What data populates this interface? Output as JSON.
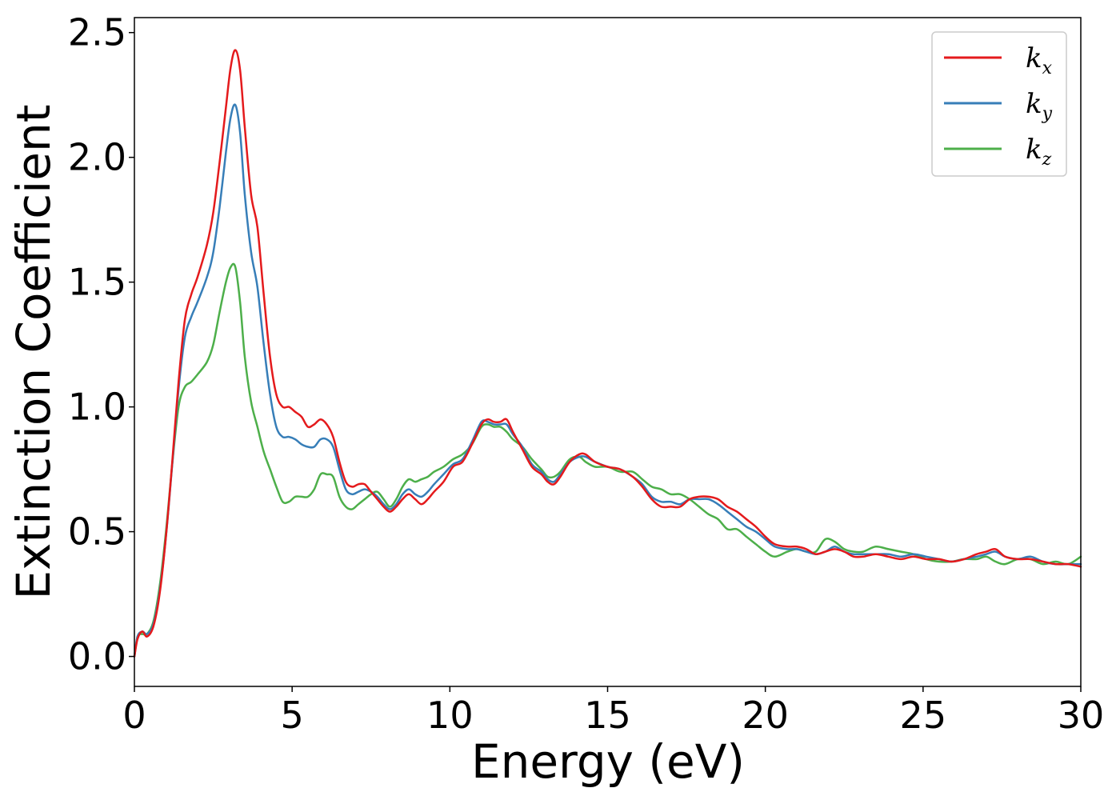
{
  "chart_data": {
    "type": "line",
    "title": "",
    "xlabel": "Energy (eV)",
    "ylabel": "Extinction Coefficient",
    "xlim": [
      0,
      30
    ],
    "ylim": [
      -0.12,
      2.56
    ],
    "xticks": [
      0,
      5,
      10,
      15,
      20,
      25,
      30
    ],
    "xtick_labels": [
      "0",
      "5",
      "10",
      "15",
      "20",
      "25",
      "30"
    ],
    "yticks": [
      0.0,
      0.5,
      1.0,
      1.5,
      2.0,
      2.5
    ],
    "ytick_labels": [
      "0.0",
      "0.5",
      "1.0",
      "1.5",
      "2.0",
      "2.5"
    ],
    "grid": false,
    "legend_position": "top-right",
    "series": [
      {
        "name": "k_x",
        "label_base": "k",
        "label_sub": "x",
        "color": "#e41a1c",
        "x": [
          0,
          0.1,
          0.25,
          0.4,
          0.6,
          0.8,
          1.0,
          1.2,
          1.4,
          1.6,
          1.8,
          2.0,
          2.3,
          2.5,
          2.7,
          2.9,
          3.05,
          3.2,
          3.35,
          3.5,
          3.7,
          3.9,
          4.1,
          4.3,
          4.5,
          4.7,
          4.9,
          5.1,
          5.3,
          5.5,
          5.7,
          5.9,
          6.1,
          6.3,
          6.5,
          6.7,
          6.9,
          7.1,
          7.3,
          7.5,
          7.7,
          7.9,
          8.1,
          8.3,
          8.5,
          8.7,
          8.9,
          9.1,
          9.3,
          9.5,
          9.8,
          10.1,
          10.4,
          10.7,
          11.0,
          11.2,
          11.4,
          11.6,
          11.8,
          12.0,
          12.3,
          12.6,
          12.9,
          13.1,
          13.3,
          13.5,
          13.8,
          14.1,
          14.3,
          14.6,
          15.0,
          15.4,
          15.8,
          16.1,
          16.4,
          16.7,
          17.0,
          17.3,
          17.6,
          17.9,
          18.2,
          18.5,
          18.8,
          19.1,
          19.4,
          19.7,
          20.0,
          20.3,
          20.7,
          21.0,
          21.3,
          21.6,
          21.9,
          22.2,
          22.5,
          22.8,
          23.1,
          23.5,
          23.9,
          24.3,
          24.7,
          25.1,
          25.5,
          25.9,
          26.3,
          26.7,
          27.0,
          27.3,
          27.6,
          28.0,
          28.4,
          28.8,
          29.2,
          29.6,
          30.0
        ],
        "y": [
          0.0,
          0.07,
          0.1,
          0.08,
          0.12,
          0.25,
          0.48,
          0.78,
          1.1,
          1.35,
          1.45,
          1.52,
          1.65,
          1.78,
          1.98,
          2.2,
          2.36,
          2.43,
          2.35,
          2.12,
          1.85,
          1.72,
          1.45,
          1.2,
          1.05,
          1.0,
          1.0,
          0.98,
          0.96,
          0.92,
          0.93,
          0.95,
          0.93,
          0.88,
          0.78,
          0.7,
          0.68,
          0.69,
          0.69,
          0.66,
          0.63,
          0.6,
          0.58,
          0.6,
          0.63,
          0.65,
          0.63,
          0.61,
          0.63,
          0.66,
          0.7,
          0.76,
          0.78,
          0.85,
          0.93,
          0.95,
          0.94,
          0.94,
          0.95,
          0.9,
          0.83,
          0.76,
          0.73,
          0.7,
          0.69,
          0.72,
          0.78,
          0.81,
          0.81,
          0.78,
          0.76,
          0.75,
          0.72,
          0.68,
          0.63,
          0.6,
          0.6,
          0.6,
          0.63,
          0.64,
          0.64,
          0.63,
          0.6,
          0.58,
          0.55,
          0.52,
          0.48,
          0.45,
          0.44,
          0.44,
          0.43,
          0.41,
          0.42,
          0.43,
          0.42,
          0.4,
          0.4,
          0.41,
          0.4,
          0.39,
          0.4,
          0.39,
          0.39,
          0.38,
          0.39,
          0.41,
          0.42,
          0.43,
          0.4,
          0.39,
          0.39,
          0.38,
          0.37,
          0.37,
          0.36
        ]
      },
      {
        "name": "k_y",
        "label_base": "k",
        "label_sub": "y",
        "color": "#377eb8",
        "x": [
          0,
          0.1,
          0.25,
          0.4,
          0.6,
          0.8,
          1.0,
          1.2,
          1.4,
          1.6,
          1.8,
          2.0,
          2.3,
          2.5,
          2.7,
          2.9,
          3.05,
          3.2,
          3.35,
          3.5,
          3.7,
          3.9,
          4.1,
          4.3,
          4.5,
          4.7,
          4.9,
          5.1,
          5.3,
          5.5,
          5.7,
          5.9,
          6.1,
          6.3,
          6.5,
          6.7,
          6.9,
          7.1,
          7.3,
          7.5,
          7.7,
          7.9,
          8.1,
          8.3,
          8.5,
          8.7,
          8.9,
          9.1,
          9.3,
          9.5,
          9.8,
          10.1,
          10.4,
          10.7,
          11.0,
          11.2,
          11.4,
          11.6,
          11.8,
          12.0,
          12.3,
          12.6,
          12.9,
          13.1,
          13.3,
          13.5,
          13.8,
          14.1,
          14.3,
          14.6,
          15.0,
          15.4,
          15.8,
          16.1,
          16.4,
          16.7,
          17.0,
          17.3,
          17.6,
          17.9,
          18.2,
          18.5,
          18.8,
          19.1,
          19.4,
          19.7,
          20.0,
          20.3,
          20.7,
          21.0,
          21.3,
          21.6,
          21.9,
          22.2,
          22.5,
          22.8,
          23.1,
          23.5,
          23.9,
          24.3,
          24.7,
          25.1,
          25.5,
          25.9,
          26.3,
          26.7,
          27.0,
          27.3,
          27.6,
          28.0,
          28.4,
          28.8,
          29.2,
          29.6,
          30.0
        ],
        "y": [
          0.0,
          0.08,
          0.1,
          0.09,
          0.13,
          0.26,
          0.48,
          0.77,
          1.07,
          1.28,
          1.36,
          1.42,
          1.52,
          1.62,
          1.8,
          2.02,
          2.16,
          2.21,
          2.1,
          1.85,
          1.62,
          1.48,
          1.25,
          1.05,
          0.92,
          0.88,
          0.88,
          0.87,
          0.85,
          0.84,
          0.84,
          0.87,
          0.87,
          0.84,
          0.75,
          0.67,
          0.65,
          0.66,
          0.67,
          0.66,
          0.64,
          0.61,
          0.59,
          0.61,
          0.65,
          0.67,
          0.65,
          0.64,
          0.66,
          0.69,
          0.73,
          0.77,
          0.79,
          0.86,
          0.94,
          0.94,
          0.93,
          0.93,
          0.93,
          0.89,
          0.84,
          0.77,
          0.74,
          0.71,
          0.7,
          0.73,
          0.78,
          0.8,
          0.8,
          0.78,
          0.76,
          0.75,
          0.72,
          0.69,
          0.64,
          0.62,
          0.62,
          0.61,
          0.63,
          0.63,
          0.63,
          0.61,
          0.58,
          0.55,
          0.52,
          0.5,
          0.47,
          0.44,
          0.43,
          0.43,
          0.42,
          0.41,
          0.42,
          0.44,
          0.42,
          0.41,
          0.41,
          0.41,
          0.41,
          0.4,
          0.41,
          0.4,
          0.39,
          0.38,
          0.39,
          0.4,
          0.41,
          0.42,
          0.4,
          0.39,
          0.4,
          0.38,
          0.37,
          0.37,
          0.37
        ]
      },
      {
        "name": "k_z",
        "label_base": "k",
        "label_sub": "z",
        "color": "#4daf4a",
        "x": [
          0,
          0.1,
          0.25,
          0.4,
          0.6,
          0.8,
          1.0,
          1.2,
          1.4,
          1.6,
          1.8,
          2.0,
          2.3,
          2.5,
          2.7,
          2.9,
          3.05,
          3.2,
          3.35,
          3.5,
          3.7,
          3.9,
          4.1,
          4.3,
          4.5,
          4.7,
          4.9,
          5.1,
          5.3,
          5.5,
          5.7,
          5.9,
          6.1,
          6.3,
          6.5,
          6.7,
          6.9,
          7.1,
          7.3,
          7.5,
          7.7,
          7.9,
          8.1,
          8.3,
          8.5,
          8.7,
          8.9,
          9.1,
          9.3,
          9.5,
          9.8,
          10.1,
          10.4,
          10.7,
          11.0,
          11.2,
          11.4,
          11.6,
          11.8,
          12.0,
          12.3,
          12.6,
          12.9,
          13.1,
          13.3,
          13.5,
          13.8,
          14.1,
          14.3,
          14.6,
          15.0,
          15.4,
          15.8,
          16.1,
          16.4,
          16.7,
          17.0,
          17.3,
          17.6,
          17.9,
          18.2,
          18.5,
          18.8,
          19.1,
          19.4,
          19.7,
          20.0,
          20.3,
          20.7,
          21.0,
          21.3,
          21.6,
          21.9,
          22.2,
          22.5,
          22.8,
          23.1,
          23.5,
          23.9,
          24.3,
          24.7,
          25.1,
          25.5,
          25.9,
          26.3,
          26.7,
          27.0,
          27.3,
          27.6,
          28.0,
          28.4,
          28.8,
          29.2,
          29.6,
          30.0
        ],
        "y": [
          0.0,
          0.08,
          0.09,
          0.09,
          0.14,
          0.28,
          0.5,
          0.77,
          1.0,
          1.08,
          1.1,
          1.13,
          1.18,
          1.25,
          1.38,
          1.5,
          1.56,
          1.56,
          1.42,
          1.2,
          1.02,
          0.92,
          0.82,
          0.75,
          0.68,
          0.62,
          0.62,
          0.64,
          0.64,
          0.64,
          0.67,
          0.73,
          0.73,
          0.72,
          0.64,
          0.6,
          0.59,
          0.61,
          0.63,
          0.65,
          0.66,
          0.63,
          0.6,
          0.63,
          0.68,
          0.71,
          0.7,
          0.71,
          0.72,
          0.74,
          0.76,
          0.79,
          0.81,
          0.85,
          0.92,
          0.93,
          0.92,
          0.92,
          0.9,
          0.87,
          0.84,
          0.79,
          0.75,
          0.72,
          0.72,
          0.74,
          0.79,
          0.8,
          0.78,
          0.76,
          0.76,
          0.74,
          0.74,
          0.71,
          0.68,
          0.67,
          0.65,
          0.65,
          0.63,
          0.6,
          0.57,
          0.55,
          0.51,
          0.51,
          0.48,
          0.45,
          0.42,
          0.4,
          0.42,
          0.43,
          0.42,
          0.42,
          0.47,
          0.46,
          0.43,
          0.42,
          0.42,
          0.44,
          0.43,
          0.42,
          0.41,
          0.39,
          0.38,
          0.38,
          0.39,
          0.39,
          0.4,
          0.38,
          0.37,
          0.39,
          0.39,
          0.37,
          0.38,
          0.37,
          0.4
        ]
      }
    ]
  }
}
